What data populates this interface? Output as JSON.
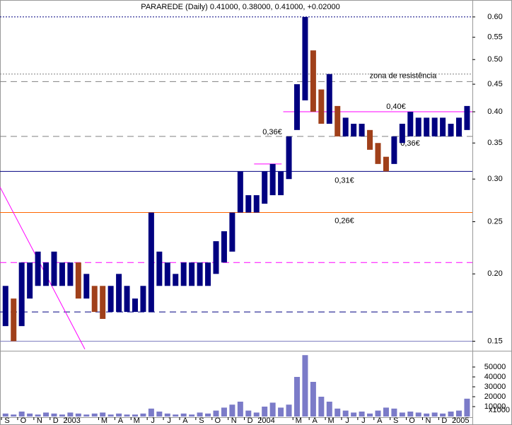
{
  "chart_data": [
    {
      "type": "hilo",
      "title": "PARAREDE (Daily) 0.41000, 0.38000, 0.41000, +0.02000",
      "log_scale": true,
      "xlim": [
        -0.09,
        29.08
      ],
      "ylim": [
        0.144,
        0.645
      ],
      "yticks": [
        {
          "value": 0.15,
          "label": "0.15"
        },
        {
          "value": 0.2,
          "label": "0.20"
        },
        {
          "value": 0.25,
          "label": "0.25"
        },
        {
          "value": 0.3,
          "label": "0.30"
        },
        {
          "value": 0.35,
          "label": "0.35"
        },
        {
          "value": 0.4,
          "label": "0.40"
        },
        {
          "value": 0.45,
          "label": "0.45"
        },
        {
          "value": 0.5,
          "label": "0.50"
        },
        {
          "value": 0.55,
          "label": "0.55"
        },
        {
          "value": 0.6,
          "label": "0.60"
        }
      ],
      "x": [
        0.25,
        0.75,
        1.25,
        1.75,
        2.25,
        2.75,
        3.25,
        3.75,
        4.25,
        4.75,
        5.25,
        5.75,
        6.25,
        6.75,
        7.25,
        7.75,
        8.25,
        8.75,
        9.25,
        9.75,
        10.25,
        10.75,
        11.25,
        11.75,
        12.25,
        12.75,
        13.25,
        13.75,
        14.25,
        14.75,
        15.25,
        15.75,
        16.25,
        16.75,
        17.25,
        17.75,
        18.25,
        18.75,
        19.25,
        19.75,
        20.25,
        20.75,
        21.25,
        21.75,
        22.25,
        22.75,
        23.25,
        23.75,
        24.25,
        24.75,
        25.25,
        25.75,
        26.25,
        26.75,
        27.25,
        27.75,
        28.25,
        28.75
      ],
      "series": [
        {
          "name": "high",
          "color": "#000080",
          "values": [
            0.19,
            0.18,
            0.21,
            0.21,
            0.22,
            0.21,
            0.22,
            0.21,
            0.21,
            0.21,
            0.2,
            0.19,
            0.19,
            0.19,
            0.2,
            0.19,
            0.18,
            0.19,
            0.26,
            0.22,
            0.21,
            0.2,
            0.21,
            0.21,
            0.21,
            0.21,
            0.23,
            0.24,
            0.26,
            0.31,
            0.28,
            0.28,
            0.31,
            0.32,
            0.31,
            0.36,
            0.45,
            0.6,
            0.52,
            0.44,
            0.47,
            0.41,
            0.39,
            0.38,
            0.38,
            0.37,
            0.35,
            0.33,
            0.36,
            0.38,
            0.4,
            0.39,
            0.39,
            0.39,
            0.39,
            0.38,
            0.39,
            0.41
          ]
        },
        {
          "name": "low",
          "color": "#a0401a",
          "values": [
            0.16,
            0.15,
            0.16,
            0.18,
            0.19,
            0.19,
            0.19,
            0.19,
            0.19,
            0.18,
            0.18,
            0.17,
            0.165,
            0.17,
            0.17,
            0.17,
            0.17,
            0.17,
            0.17,
            0.19,
            0.19,
            0.19,
            0.19,
            0.19,
            0.19,
            0.19,
            0.2,
            0.21,
            0.22,
            0.26,
            0.26,
            0.26,
            0.27,
            0.28,
            0.28,
            0.3,
            0.37,
            0.42,
            0.4,
            0.38,
            0.38,
            0.36,
            0.36,
            0.36,
            0.36,
            0.34,
            0.32,
            0.31,
            0.32,
            0.35,
            0.36,
            0.36,
            0.36,
            0.36,
            0.36,
            0.36,
            0.36,
            0.37
          ]
        }
      ],
      "lines": [
        {
          "value": 0.6,
          "color": "#000080",
          "style": "dotted"
        },
        {
          "value": 0.47,
          "color": "#808080",
          "style": "dotted"
        },
        {
          "value": 0.455,
          "color": "#808080",
          "style": "dashed",
          "label": "zona de resistência"
        },
        {
          "value": 0.4,
          "color": "#ff00ff",
          "style": "solid",
          "label": "0,40€",
          "x_start": 17.4
        },
        {
          "value": 0.36,
          "color": "#808080",
          "style": "dashed",
          "label": "0,36€"
        },
        {
          "value": 0.32,
          "color": "#ff00ff",
          "style": "solid",
          "x_start": 15.6,
          "x_end": 17.3
        },
        {
          "value": 0.31,
          "color": "#000080",
          "style": "solid",
          "label": "0,31€"
        },
        {
          "value": 0.26,
          "color": "#ff6600",
          "style": "solid",
          "label": "0,26€"
        },
        {
          "value": 0.21,
          "color": "#ff00ff",
          "style": "dashed"
        },
        {
          "value": 0.17,
          "color": "#000080",
          "style": "dashed"
        },
        {
          "value": 0.15,
          "color": "#8080c0",
          "style": "solid"
        }
      ],
      "trendline": {
        "color": "#ff00ff",
        "x": [
          -0.09,
          5.15
        ],
        "y": [
          0.29,
          0.145
        ]
      }
    },
    {
      "type": "bar",
      "color": "#7b7bc8",
      "xlim": [
        -0.09,
        29.08
      ],
      "ylim": [
        0,
        65000
      ],
      "unit": "x1000",
      "yticks": [
        10000,
        20000,
        30000,
        40000,
        50000
      ],
      "xticks": [
        {
          "value": 0,
          "label": "S"
        },
        {
          "value": 1,
          "label": "O"
        },
        {
          "value": 2,
          "label": "N"
        },
        {
          "value": 3,
          "label": "D"
        },
        {
          "value": 4,
          "label": "2003"
        },
        {
          "value": 6,
          "label": "M"
        },
        {
          "value": 7,
          "label": "A"
        },
        {
          "value": 8,
          "label": "M"
        },
        {
          "value": 9,
          "label": "J"
        },
        {
          "value": 10,
          "label": "J"
        },
        {
          "value": 11,
          "label": "A"
        },
        {
          "value": 12,
          "label": "S"
        },
        {
          "value": 13,
          "label": "O"
        },
        {
          "value": 14,
          "label": "N"
        },
        {
          "value": 15,
          "label": "D"
        },
        {
          "value": 16,
          "label": "2004"
        },
        {
          "value": 18,
          "label": "M"
        },
        {
          "value": 19,
          "label": "A"
        },
        {
          "value": 20,
          "label": "M"
        },
        {
          "value": 21,
          "label": "J"
        },
        {
          "value": 22,
          "label": "J"
        },
        {
          "value": 23,
          "label": "A"
        },
        {
          "value": 24,
          "label": "S"
        },
        {
          "value": 25,
          "label": "O"
        },
        {
          "value": 26,
          "label": "N"
        },
        {
          "value": 27,
          "label": "D"
        },
        {
          "value": 28,
          "label": "2005"
        }
      ],
      "x": [
        0.25,
        0.75,
        1.25,
        1.75,
        2.25,
        2.75,
        3.25,
        3.75,
        4.25,
        4.75,
        5.25,
        5.75,
        6.25,
        6.75,
        7.25,
        7.75,
        8.25,
        8.75,
        9.25,
        9.75,
        10.25,
        10.75,
        11.25,
        11.75,
        12.25,
        12.75,
        13.25,
        13.75,
        14.25,
        14.75,
        15.25,
        15.75,
        16.25,
        16.75,
        17.25,
        17.75,
        18.25,
        18.75,
        19.25,
        19.75,
        20.25,
        20.75,
        21.25,
        21.75,
        22.25,
        22.75,
        23.25,
        23.75,
        24.25,
        24.75,
        25.25,
        25.75,
        26.25,
        26.75,
        27.25,
        27.75,
        28.25,
        28.75
      ],
      "values": [
        3000,
        2000,
        5000,
        3000,
        2000,
        4000,
        3000,
        2000,
        4000,
        3000,
        2000,
        3000,
        4000,
        2000,
        3000,
        2000,
        2000,
        3000,
        8000,
        5000,
        3000,
        2000,
        3000,
        2000,
        4000,
        3000,
        6000,
        9000,
        12000,
        15000,
        6000,
        4000,
        10000,
        14000,
        9000,
        12000,
        40000,
        62000,
        35000,
        20000,
        15000,
        8000,
        6000,
        4000,
        5000,
        3000,
        6000,
        9000,
        8000,
        4000,
        5000,
        4000,
        3000,
        4000,
        3000,
        5000,
        6000,
        18000
      ]
    }
  ]
}
